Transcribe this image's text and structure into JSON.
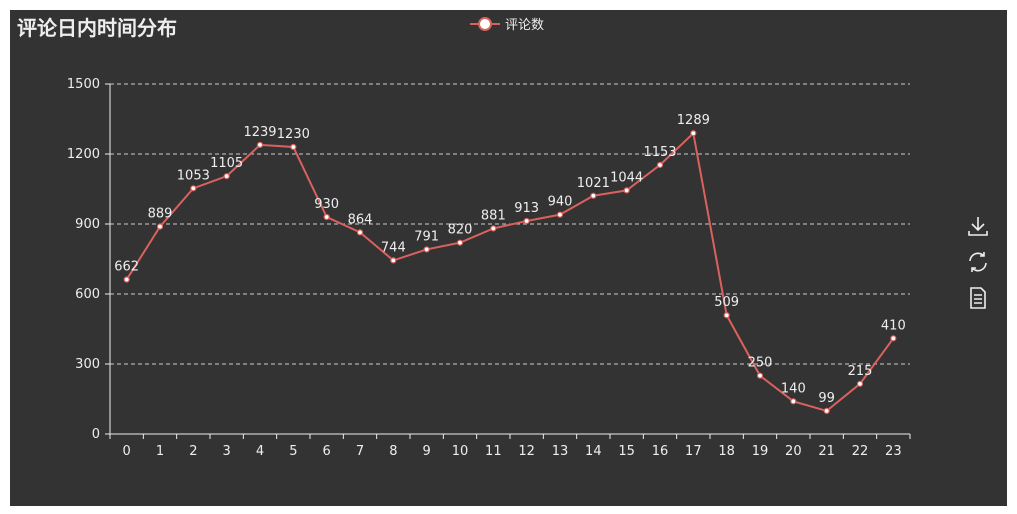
{
  "chart_data": {
    "type": "line",
    "title": "评论日内时间分布",
    "legend": {
      "position": "top-center"
    },
    "categories": [
      "0",
      "1",
      "2",
      "3",
      "4",
      "5",
      "6",
      "7",
      "8",
      "9",
      "10",
      "11",
      "12",
      "13",
      "14",
      "15",
      "16",
      "17",
      "18",
      "19",
      "20",
      "21",
      "22",
      "23"
    ],
    "series": [
      {
        "name": "评论数",
        "values": [
          662,
          889,
          1053,
          1105,
          1239,
          1230,
          930,
          864,
          744,
          791,
          820,
          881,
          913,
          940,
          1021,
          1044,
          1153,
          1289,
          509,
          250,
          140,
          99,
          215,
          410
        ]
      }
    ],
    "yticks": [
      "0",
      "300",
      "600",
      "900",
      "1200",
      "1500"
    ],
    "ylim": [
      0,
      1500
    ],
    "grid": "horizontal-dashed",
    "xlabel": "",
    "ylabel": ""
  },
  "colors": {
    "background": "#333333",
    "line": "#d9625e",
    "text": "#eeeeee",
    "grid": "#cccccc"
  },
  "toolbox": [
    "download-icon",
    "refresh-icon",
    "data-view-icon"
  ]
}
